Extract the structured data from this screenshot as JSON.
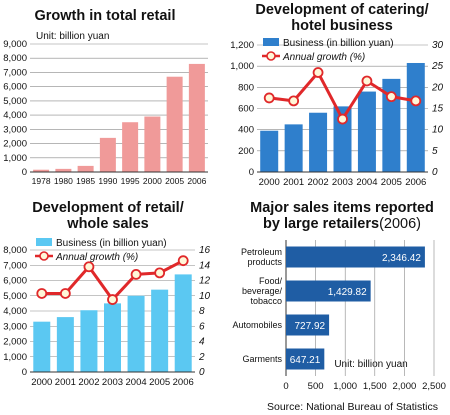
{
  "source": "Source: National Bureau of Statistics",
  "chart_data": [
    {
      "type": "bar",
      "title": "Growth in total retail",
      "unit_label": "Unit: billion yuan",
      "categories": [
        "1978",
        "1980",
        "1985",
        "1990",
        "1995",
        "2000",
        "2005",
        "2006"
      ],
      "values": [
        160,
        220,
        430,
        2400,
        3500,
        3900,
        6700,
        7600
      ],
      "ylim": [
        0,
        9000
      ],
      "yticks": [
        "0",
        "1,000",
        "2,000",
        "3,000",
        "4,000",
        "5,000",
        "6,000",
        "7,000",
        "8,000",
        "9,000"
      ],
      "colors": {
        "bar": "#f09a99"
      }
    },
    {
      "type": "bar",
      "title_line1": "Development of catering/",
      "title_line2": "hotel business",
      "categories": [
        "2000",
        "2001",
        "2002",
        "2003",
        "2004",
        "2005",
        "2006"
      ],
      "series": [
        {
          "name": "Business (in billion yuan)",
          "values": [
            390,
            450,
            560,
            620,
            760,
            880,
            1030
          ]
        },
        {
          "name": "Annual growth (%)",
          "values": [
            17.5,
            16.8,
            23.5,
            12.5,
            21.5,
            17.8,
            16.8
          ]
        }
      ],
      "ylim": [
        0,
        1200
      ],
      "y2lim": [
        0,
        30
      ],
      "yticks": [
        "0",
        "200",
        "400",
        "600",
        "800",
        "1,000",
        "1,200"
      ],
      "y2ticks": [
        "0",
        "5",
        "10",
        "15",
        "20",
        "25",
        "30"
      ],
      "colors": {
        "bar": "#2f7fcc",
        "line": "#e0282a"
      }
    },
    {
      "type": "bar",
      "title_line1": "Development of retail/",
      "title_line2": "whole sales",
      "categories": [
        "2000",
        "2001",
        "2002",
        "2003",
        "2004",
        "2005",
        "2006"
      ],
      "series": [
        {
          "name": "Business (in billion yuan)",
          "values": [
            3300,
            3600,
            4050,
            4500,
            5000,
            5400,
            6400
          ]
        },
        {
          "name": "Annual growth (%)",
          "values": [
            10.3,
            10.3,
            13.8,
            9.5,
            12.8,
            13.0,
            14.6
          ]
        }
      ],
      "ylim": [
        0,
        8000
      ],
      "y2lim": [
        0,
        16
      ],
      "yticks": [
        "0",
        "1,000",
        "2,000",
        "3,000",
        "4,000",
        "5,000",
        "6,000",
        "7,000",
        "8,000"
      ],
      "y2ticks": [
        "0",
        "2",
        "4",
        "6",
        "8",
        "10",
        "12",
        "14",
        "16"
      ],
      "colors": {
        "bar": "#5bc8f2",
        "line": "#e0282a"
      }
    },
    {
      "type": "bar",
      "orientation": "horizontal",
      "title_line1": "Major sales items reported",
      "title_line2": "by large retailers",
      "title_year": "(2006)",
      "unit_label": "Unit: billion yuan",
      "categories": [
        "Petroleum products",
        "Food/ beverage/ tobacco",
        "Automobiles",
        "Garments"
      ],
      "category_lines": [
        [
          "Petroleum",
          "products"
        ],
        [
          "Food/",
          "beverage/",
          "tobacco"
        ],
        [
          "Automobiles"
        ],
        [
          "Garments"
        ]
      ],
      "values": [
        2346.42,
        1429.82,
        727.92,
        647.21
      ],
      "value_labels": [
        "2,346.42",
        "1,429.82",
        "727.92",
        "647.21"
      ],
      "xlim": [
        0,
        2500
      ],
      "xticks": [
        "0",
        "500",
        "1,000",
        "1,500",
        "2,000",
        "2,500"
      ],
      "colors": {
        "bar": "#1f5da4"
      }
    }
  ]
}
